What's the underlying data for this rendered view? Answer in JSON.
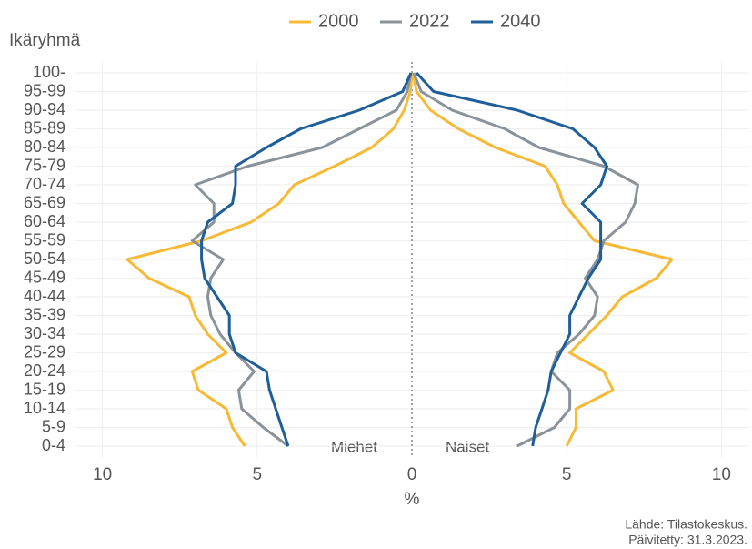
{
  "chart_data": {
    "type": "pyramid-line",
    "y_axis_title": "Ikäryhmä",
    "x_axis_title": "%",
    "annotations": [
      "Miehet",
      "Naiset"
    ],
    "source": [
      "Lähde: Tilastokeskus.",
      "Päivitetty: 31.3.2023."
    ],
    "categories": [
      "0-4",
      "5-9",
      "10-14",
      "15-19",
      "20-24",
      "25-29",
      "30-34",
      "35-39",
      "40-44",
      "45-49",
      "50-54",
      "55-59",
      "60-64",
      "65-69",
      "70-74",
      "75-79",
      "80-84",
      "85-89",
      "90-94",
      "95-99",
      "100-"
    ],
    "xlim": [
      -10.9,
      10.9
    ],
    "xticks": [
      {
        "value": -10,
        "label": "10"
      },
      {
        "value": -5,
        "label": "5"
      },
      0,
      5,
      10
    ],
    "grid": true,
    "legend": "top",
    "series": [
      {
        "name": "2000",
        "color": "#f8b934",
        "men": [
          -5.4,
          -5.8,
          -6.0,
          -6.9,
          -7.1,
          -6.0,
          -6.6,
          -7.0,
          -7.2,
          -8.5,
          -9.2,
          -6.8,
          -5.2,
          -4.3,
          -3.8,
          -2.5,
          -1.3,
          -0.6,
          -0.25,
          -0.05,
          0
        ],
        "women": [
          5.0,
          5.3,
          5.3,
          6.5,
          6.2,
          5.1,
          5.7,
          6.3,
          6.8,
          7.9,
          8.4,
          5.9,
          5.4,
          4.9,
          4.7,
          4.3,
          2.7,
          1.5,
          0.6,
          0.15,
          0.03
        ]
      },
      {
        "name": "2022",
        "color": "#8a9399",
        "men": [
          -4.0,
          -4.8,
          -5.5,
          -5.6,
          -5.1,
          -5.7,
          -6.2,
          -6.5,
          -6.6,
          -6.5,
          -6.1,
          -7.1,
          -6.4,
          -6.4,
          -7.0,
          -5.3,
          -2.9,
          -1.7,
          -0.5,
          -0.15,
          -0.03
        ],
        "women": [
          3.4,
          4.6,
          5.1,
          5.1,
          4.5,
          4.7,
          5.4,
          5.9,
          6.0,
          5.6,
          6.0,
          6.2,
          6.9,
          7.2,
          7.3,
          6.2,
          4.1,
          3.0,
          1.3,
          0.3,
          0.06
        ]
      },
      {
        "name": "2040",
        "color": "#1f5f99",
        "men": [
          -4.0,
          -4.2,
          -4.4,
          -4.6,
          -4.7,
          -5.7,
          -5.9,
          -5.9,
          -6.3,
          -6.7,
          -6.8,
          -6.8,
          -6.6,
          -5.8,
          -5.7,
          -5.7,
          -4.7,
          -3.6,
          -1.7,
          -0.3,
          -0.03
        ],
        "women": [
          3.9,
          4.0,
          4.2,
          4.4,
          4.5,
          4.8,
          5.1,
          5.1,
          5.4,
          5.7,
          6.1,
          6.1,
          6.1,
          5.5,
          6.1,
          6.3,
          5.9,
          5.2,
          3.4,
          0.7,
          0.15
        ]
      }
    ]
  }
}
